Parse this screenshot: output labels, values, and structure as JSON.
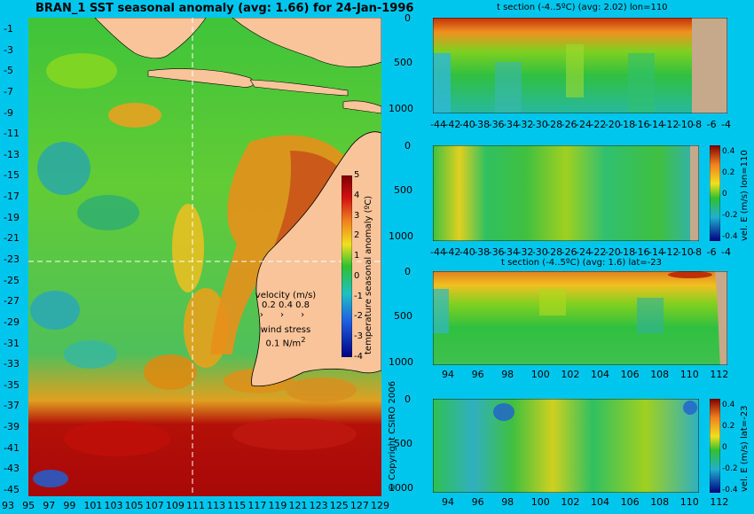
{
  "map": {
    "title": "BRAN_1 SST seasonal anomaly (avg: 1.66) for 24-Jan-1996",
    "lat_ticks": [
      "-1",
      "-3",
      "-5",
      "-7",
      "-9",
      "-11",
      "-13",
      "-15",
      "-17",
      "-19",
      "-21",
      "-23",
      "-25",
      "-27",
      "-29",
      "-31",
      "-33",
      "-35",
      "-37",
      "-39",
      "-41",
      "-43",
      "-45"
    ],
    "lon_ticks": [
      "93",
      "95",
      "97",
      "99",
      "101",
      "103",
      "105",
      "107",
      "109",
      "111",
      "113",
      "115",
      "117",
      "119",
      "121",
      "123",
      "125",
      "127",
      "129"
    ],
    "colorbar": {
      "label": "temperature seasonal anomaly (ºC)",
      "ticks": [
        "5",
        "4",
        "3",
        "2",
        "1",
        "0",
        "-1",
        "-2",
        "-3",
        "-4"
      ]
    },
    "velocity_legend": {
      "title": "velocity (m/s)",
      "values": "0.2 0.4 0.8",
      "wind_title": "wind stress",
      "wind_value": "0.1 N/m",
      "wind_exp": "2"
    }
  },
  "panels": [
    {
      "title": "t section (-4..5ºC) (avg: 2.02) lon=110",
      "y_ticks": [
        "0",
        "500",
        "1000"
      ],
      "x_ticks": [
        "-44",
        "-42",
        "-40",
        "-38",
        "-36",
        "-34",
        "-32",
        "-30",
        "-28",
        "-26",
        "-24",
        "-22",
        "-20",
        "-18",
        "-16",
        "-14",
        "-12",
        "-10",
        "-8",
        "-6",
        "-4"
      ]
    },
    {
      "title": "",
      "y_ticks": [
        "0",
        "500",
        "1000"
      ],
      "x_ticks": [
        "-44",
        "-42",
        "-40",
        "-38",
        "-36",
        "-34",
        "-32",
        "-30",
        "-28",
        "-26",
        "-24",
        "-22",
        "-20",
        "-18",
        "-16",
        "-14",
        "-12",
        "-10",
        "-8",
        "-6",
        "-4"
      ],
      "colorbar": {
        "label": "vel. E (m/s) lon=110",
        "ticks": [
          "0.4",
          "0.2",
          "0",
          "-0.2",
          "-0.4"
        ]
      }
    },
    {
      "title": "t section (-4..5ºC) (avg: 1.6) lat=-23",
      "y_ticks": [
        "0",
        "500",
        "1000"
      ],
      "x_ticks": [
        "94",
        "96",
        "98",
        "100",
        "102",
        "104",
        "106",
        "108",
        "110",
        "112"
      ]
    },
    {
      "title": "",
      "y_ticks": [
        "0",
        "500",
        "1000"
      ],
      "x_ticks": [
        "94",
        "96",
        "98",
        "100",
        "102",
        "104",
        "106",
        "108",
        "110",
        "112"
      ],
      "colorbar": {
        "label": "vel. E (m/s) lat=-23",
        "ticks": [
          "0.4",
          "0.2",
          "0",
          "-0.2",
          "-0.4"
        ]
      }
    }
  ],
  "copyright": "© Copyright CSIRO 2006",
  "colors": {
    "background": "#00c6ee",
    "land": "#f9c49a",
    "section_land": "#c6a98a"
  }
}
